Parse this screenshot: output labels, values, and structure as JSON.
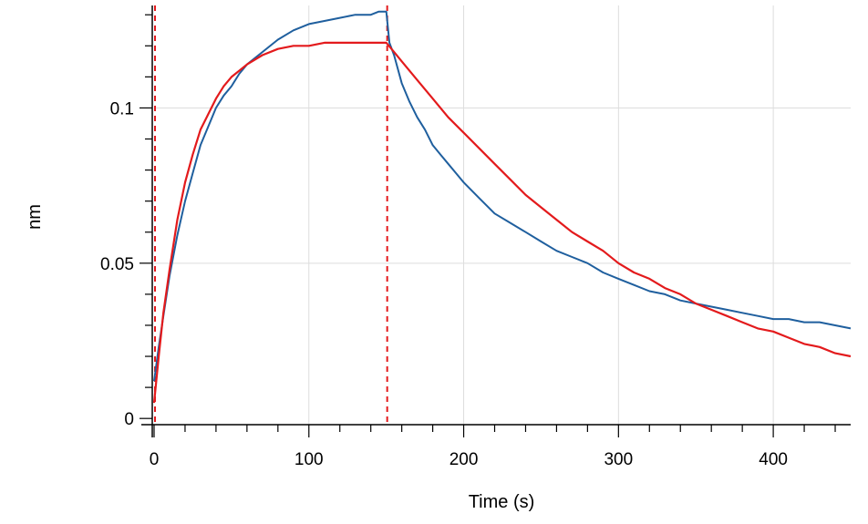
{
  "chart_data": {
    "type": "line",
    "title": "",
    "xlabel": "Time (s)",
    "ylabel": "nm",
    "xlim": [
      0,
      450
    ],
    "ylim": [
      -0.002,
      0.133
    ],
    "x_ticks": [
      0,
      100,
      200,
      300,
      400
    ],
    "x_tick_labels": [
      "0",
      "100",
      "200",
      "300",
      "400"
    ],
    "y_ticks": [
      0,
      0.05,
      0.1
    ],
    "y_tick_labels": [
      "0",
      "0.05",
      "0.1"
    ],
    "grid": true,
    "legend": "none",
    "vertical_markers": [
      0,
      150
    ],
    "series": [
      {
        "color": "#1f5f9e",
        "x": [
          0,
          3,
          6,
          10,
          15,
          20,
          25,
          30,
          35,
          40,
          45,
          50,
          55,
          60,
          70,
          80,
          90,
          100,
          110,
          120,
          130,
          140,
          145,
          150,
          152,
          155,
          160,
          165,
          170,
          175,
          180,
          185,
          190,
          195,
          200,
          210,
          220,
          230,
          240,
          250,
          260,
          270,
          280,
          290,
          300,
          310,
          320,
          330,
          340,
          350,
          360,
          370,
          380,
          390,
          400,
          410,
          420,
          430,
          440,
          450
        ],
        "y": [
          0.012,
          0.023,
          0.033,
          0.046,
          0.059,
          0.07,
          0.079,
          0.088,
          0.094,
          0.1,
          0.104,
          0.107,
          0.111,
          0.114,
          0.118,
          0.122,
          0.125,
          0.127,
          0.128,
          0.129,
          0.13,
          0.13,
          0.131,
          0.131,
          0.121,
          0.117,
          0.108,
          0.102,
          0.097,
          0.093,
          0.088,
          0.085,
          0.082,
          0.079,
          0.076,
          0.071,
          0.066,
          0.063,
          0.06,
          0.057,
          0.054,
          0.052,
          0.05,
          0.047,
          0.045,
          0.043,
          0.041,
          0.04,
          0.038,
          0.037,
          0.036,
          0.035,
          0.034,
          0.033,
          0.032,
          0.032,
          0.031,
          0.031,
          0.03,
          0.029
        ]
      },
      {
        "color": "#e31a1c",
        "x": [
          0,
          3,
          6,
          10,
          15,
          20,
          25,
          30,
          35,
          40,
          45,
          50,
          55,
          60,
          70,
          80,
          90,
          100,
          110,
          120,
          130,
          140,
          150,
          155,
          160,
          170,
          180,
          190,
          200,
          210,
          220,
          230,
          240,
          250,
          260,
          270,
          280,
          290,
          300,
          310,
          320,
          330,
          340,
          350,
          360,
          370,
          380,
          390,
          400,
          410,
          420,
          430,
          440,
          450
        ],
        "y": [
          0.005,
          0.02,
          0.034,
          0.048,
          0.064,
          0.076,
          0.085,
          0.093,
          0.098,
          0.103,
          0.107,
          0.11,
          0.112,
          0.114,
          0.117,
          0.119,
          0.12,
          0.12,
          0.121,
          0.121,
          0.121,
          0.121,
          0.121,
          0.118,
          0.115,
          0.109,
          0.103,
          0.097,
          0.092,
          0.087,
          0.082,
          0.077,
          0.072,
          0.068,
          0.064,
          0.06,
          0.057,
          0.054,
          0.05,
          0.047,
          0.045,
          0.042,
          0.04,
          0.037,
          0.035,
          0.033,
          0.031,
          0.029,
          0.028,
          0.026,
          0.024,
          0.023,
          0.021,
          0.02
        ]
      }
    ]
  }
}
